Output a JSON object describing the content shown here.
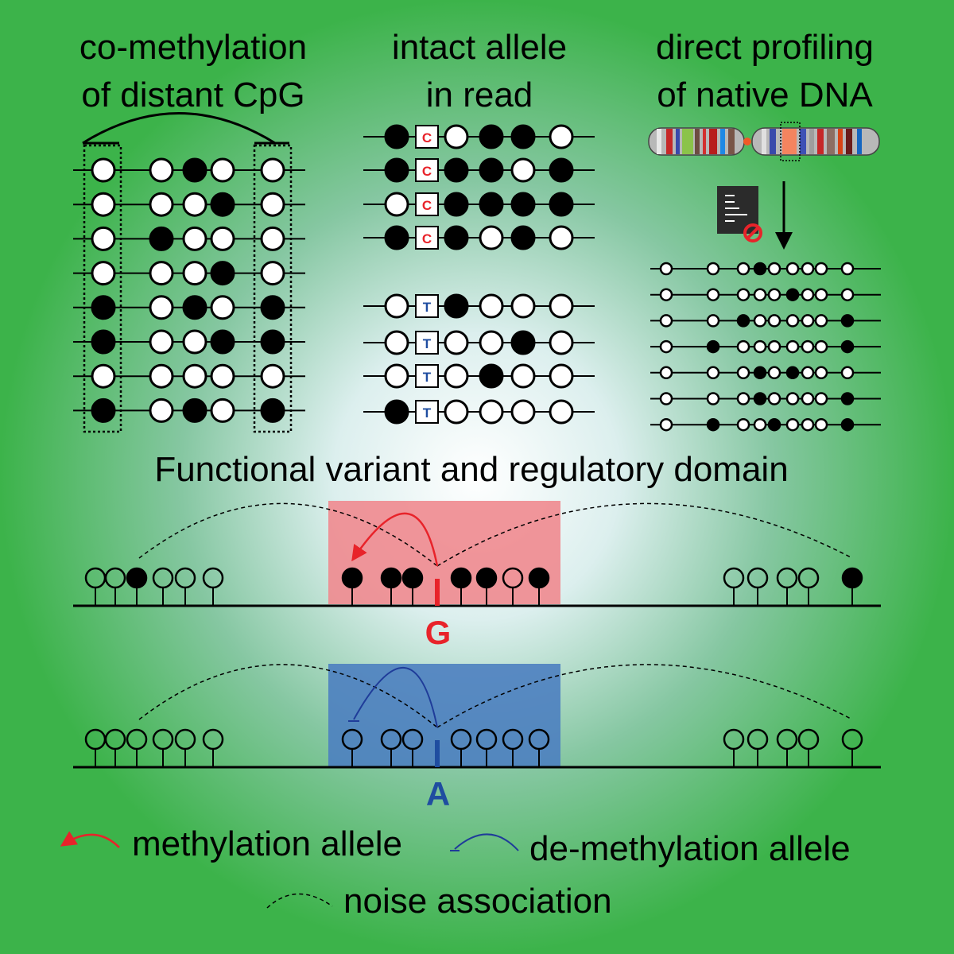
{
  "colors": {
    "background_outer": "#3cb34a",
    "background_inner": "#ffffff",
    "methylated": "#000000",
    "unmethylated": "#ffffff",
    "allele_G": "#e8232a",
    "allele_A": "#1f4da0",
    "red_domain": "#f08a8f",
    "blue_domain": "#4d7fc0"
  },
  "panels": {
    "comethylation": {
      "title_lines": [
        "co-methylation",
        "of distant CpG"
      ],
      "rows": [
        [
          0,
          0,
          1,
          0,
          0
        ],
        [
          0,
          0,
          0,
          1,
          0
        ],
        [
          0,
          1,
          0,
          0,
          0
        ],
        [
          0,
          0,
          0,
          1,
          0
        ],
        [
          1,
          0,
          1,
          0,
          1
        ],
        [
          1,
          0,
          0,
          1,
          1
        ],
        [
          0,
          0,
          0,
          0,
          0
        ],
        [
          1,
          0,
          1,
          0,
          1
        ]
      ]
    },
    "intact_allele": {
      "title_lines": [
        "intact allele",
        "in read"
      ],
      "reads": [
        {
          "base": "C",
          "left": 1,
          "right": [
            0,
            1,
            1,
            0
          ]
        },
        {
          "base": "C",
          "left": 1,
          "right": [
            1,
            1,
            0,
            1
          ]
        },
        {
          "base": "C",
          "left": 0,
          "right": [
            1,
            1,
            1,
            1
          ]
        },
        {
          "base": "C",
          "left": 1,
          "right": [
            1,
            0,
            1,
            0
          ]
        },
        {
          "base": "T",
          "left": 0,
          "right": [
            1,
            0,
            0,
            0
          ]
        },
        {
          "base": "T",
          "left": 0,
          "right": [
            0,
            0,
            1,
            0
          ]
        },
        {
          "base": "T",
          "left": 0,
          "right": [
            0,
            1,
            0,
            0
          ]
        },
        {
          "base": "T",
          "left": 1,
          "right": [
            0,
            0,
            0,
            0
          ]
        }
      ]
    },
    "native_dna": {
      "title_lines": [
        "direct profiling",
        "of native DNA"
      ],
      "icons": [
        "chromosome-icon",
        "sequencer-icon",
        "no-bisulfite-icon",
        "arrow-down-icon"
      ],
      "reads": [
        [
          0,
          0,
          0,
          1,
          0,
          0,
          0,
          0,
          0
        ],
        [
          0,
          0,
          0,
          0,
          0,
          1,
          0,
          0,
          0
        ],
        [
          0,
          0,
          1,
          0,
          0,
          0,
          0,
          0,
          1
        ],
        [
          0,
          1,
          0,
          0,
          0,
          0,
          0,
          0,
          1
        ],
        [
          0,
          0,
          0,
          1,
          0,
          1,
          0,
          0,
          0
        ],
        [
          0,
          0,
          0,
          1,
          0,
          0,
          0,
          0,
          1
        ],
        [
          0,
          1,
          0,
          0,
          1,
          0,
          0,
          0,
          1
        ]
      ]
    }
  },
  "functional": {
    "heading": "Functional variant and regulatory domain",
    "alleles": [
      {
        "label": "G",
        "sites": [
          0,
          0,
          1,
          0,
          0,
          0,
          1,
          1,
          1,
          1,
          1,
          0,
          1,
          0,
          0,
          0,
          0,
          1
        ]
      },
      {
        "label": "A",
        "sites": [
          0,
          0,
          0,
          0,
          0,
          0,
          0,
          0,
          0,
          0,
          0,
          0,
          0,
          0,
          0,
          0,
          0,
          0
        ]
      }
    ]
  },
  "legend": {
    "methylation": "methylation allele",
    "demethylation": "de-methylation allele",
    "noise": "noise association"
  }
}
